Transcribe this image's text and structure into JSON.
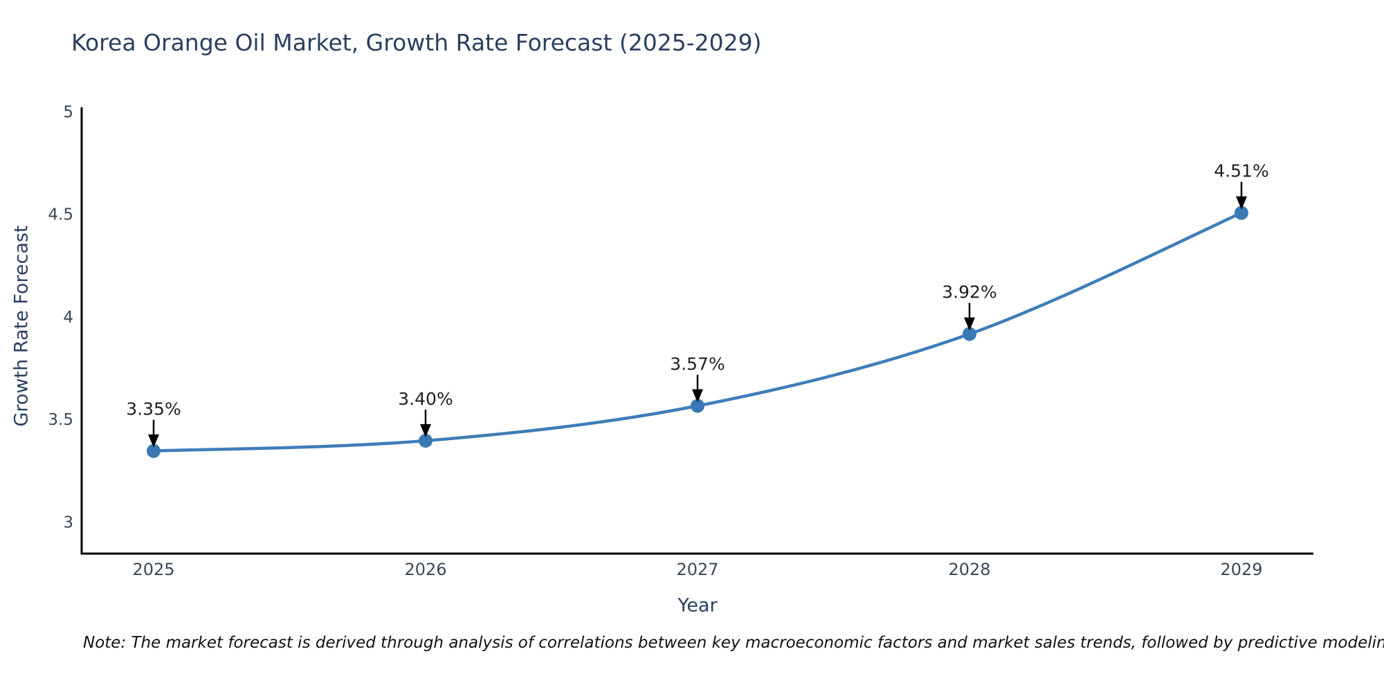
{
  "title": "Korea Orange Oil Market, Growth Rate Forecast (2025-2029)",
  "note": "Note: The market forecast is derived through analysis of correlations between key macroeconomic factors and market sales trends, followed by predictive modeling to project future sales",
  "chart_data": {
    "type": "line",
    "title": "Korea Orange Oil Market, Growth Rate Forecast (2025-2029)",
    "xlabel": "Year",
    "ylabel": "Growth Rate Forecast",
    "categories": [
      "2025",
      "2026",
      "2027",
      "2028",
      "2029"
    ],
    "values": [
      3.35,
      3.4,
      3.57,
      3.92,
      4.51
    ],
    "point_labels": [
      "3.35%",
      "3.40%",
      "3.57%",
      "3.92%",
      "4.51%"
    ],
    "yticks": [
      3,
      3.5,
      4,
      4.5,
      5
    ],
    "ytick_labels": [
      "3",
      "3.5",
      "4",
      "4.5",
      "5"
    ],
    "ylim": [
      2.85,
      5.025
    ],
    "grid": false,
    "legend": "none",
    "curve": "spline",
    "line_color": "#3f7db8",
    "marker_color": "#3878b4",
    "axis_color": "#000000",
    "tick_label_color": "#3b4757",
    "annotation_color": "#1f1f1f",
    "arrow_color": "#000000"
  }
}
